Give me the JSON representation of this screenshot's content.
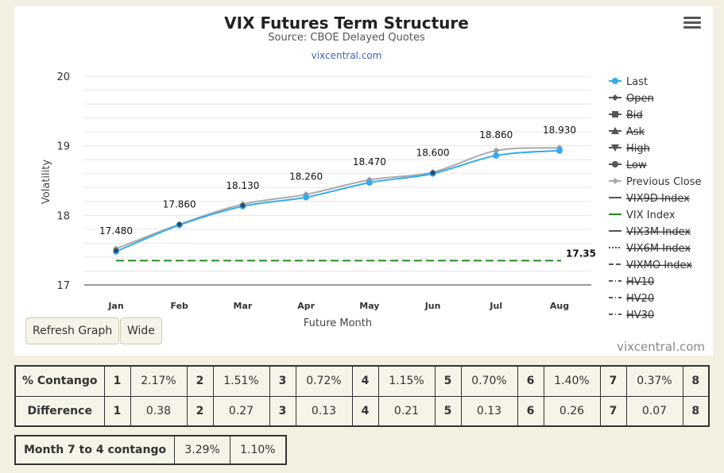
{
  "chart_data": {
    "type": "line",
    "title": "VIX Futures Term Structure",
    "subtitle": "Source: CBOE Delayed Quotes",
    "link_text": "vixcentral.com",
    "xlabel": "Future Month",
    "ylabel": "Volatility",
    "categories": [
      "Jan",
      "Feb",
      "Mar",
      "Apr",
      "May",
      "Jun",
      "Jul",
      "Aug"
    ],
    "ylim": [
      17,
      20
    ],
    "yticks": [
      "17",
      "18",
      "19",
      "20"
    ],
    "grid": true,
    "legend_position": "right",
    "series": [
      {
        "name": "Last",
        "values": [
          17.48,
          17.86,
          18.13,
          18.26,
          18.47,
          18.6,
          18.86,
          18.93
        ],
        "color": "#33aaee",
        "data_labels": [
          "17.480",
          "17.860",
          "18.130",
          "18.260",
          "18.470",
          "18.600",
          "18.860",
          "18.930"
        ]
      },
      {
        "name": "Previous Close",
        "values": [
          17.52,
          17.87,
          18.16,
          18.3,
          18.51,
          18.62,
          18.93,
          18.97
        ],
        "color": "#aaaaaa"
      },
      {
        "name": "VIX Index",
        "value": 17.35,
        "value_label": "17.35",
        "color": "#228B22",
        "dash": true
      }
    ],
    "legend": [
      {
        "label": "Last",
        "active": true,
        "symbol": "circle-line",
        "color": "#33aaee"
      },
      {
        "label": "Open",
        "active": false,
        "symbol": "diamond",
        "color": "#555555"
      },
      {
        "label": "Bid",
        "active": false,
        "symbol": "square",
        "color": "#555555"
      },
      {
        "label": "Ask",
        "active": false,
        "symbol": "triangle",
        "color": "#555555"
      },
      {
        "label": "High",
        "active": false,
        "symbol": "triangle-down",
        "color": "#555555"
      },
      {
        "label": "Low",
        "active": false,
        "symbol": "circle",
        "color": "#555555"
      },
      {
        "label": "Previous Close",
        "active": true,
        "symbol": "diamond",
        "color": "#aaaaaa"
      },
      {
        "label": "VIX9D Index",
        "active": false,
        "symbol": "line",
        "color": "#777777"
      },
      {
        "label": "VIX Index",
        "active": true,
        "symbol": "line",
        "color": "#228B22"
      },
      {
        "label": "VIX3M Index",
        "active": false,
        "symbol": "line",
        "color": "#777777"
      },
      {
        "label": "VIX6M Index",
        "active": false,
        "symbol": "dotted",
        "color": "#777777"
      },
      {
        "label": "VIXMO Index",
        "active": false,
        "symbol": "dashed",
        "color": "#777777"
      },
      {
        "label": "HV10",
        "active": false,
        "symbol": "dash-dot",
        "color": "#777777"
      },
      {
        "label": "HV20",
        "active": false,
        "symbol": "dash-dot",
        "color": "#777777"
      },
      {
        "label": "HV30",
        "active": false,
        "symbol": "dash-dot",
        "color": "#777777"
      }
    ]
  },
  "buttons": {
    "refresh": "Refresh Graph",
    "wide": "Wide"
  },
  "watermark": "vixcentral.com",
  "stats": {
    "contango_label": "% Contango",
    "difference_label": "Difference",
    "contango": [
      {
        "n": "1",
        "v": "2.17%"
      },
      {
        "n": "2",
        "v": "1.51%"
      },
      {
        "n": "3",
        "v": "0.72%"
      },
      {
        "n": "4",
        "v": "1.15%"
      },
      {
        "n": "5",
        "v": "0.70%"
      },
      {
        "n": "6",
        "v": "1.40%"
      },
      {
        "n": "7",
        "v": "0.37%"
      }
    ],
    "contango_last": "8",
    "difference": [
      {
        "n": "1",
        "v": "0.38"
      },
      {
        "n": "2",
        "v": "0.27"
      },
      {
        "n": "3",
        "v": "0.13"
      },
      {
        "n": "4",
        "v": "0.21"
      },
      {
        "n": "5",
        "v": "0.13"
      },
      {
        "n": "6",
        "v": "0.26"
      },
      {
        "n": "7",
        "v": "0.07"
      }
    ],
    "difference_last": "8"
  },
  "month_contango": {
    "label": "Month 7 to 4 contango",
    "v1": "3.29%",
    "v2": "1.10%"
  }
}
